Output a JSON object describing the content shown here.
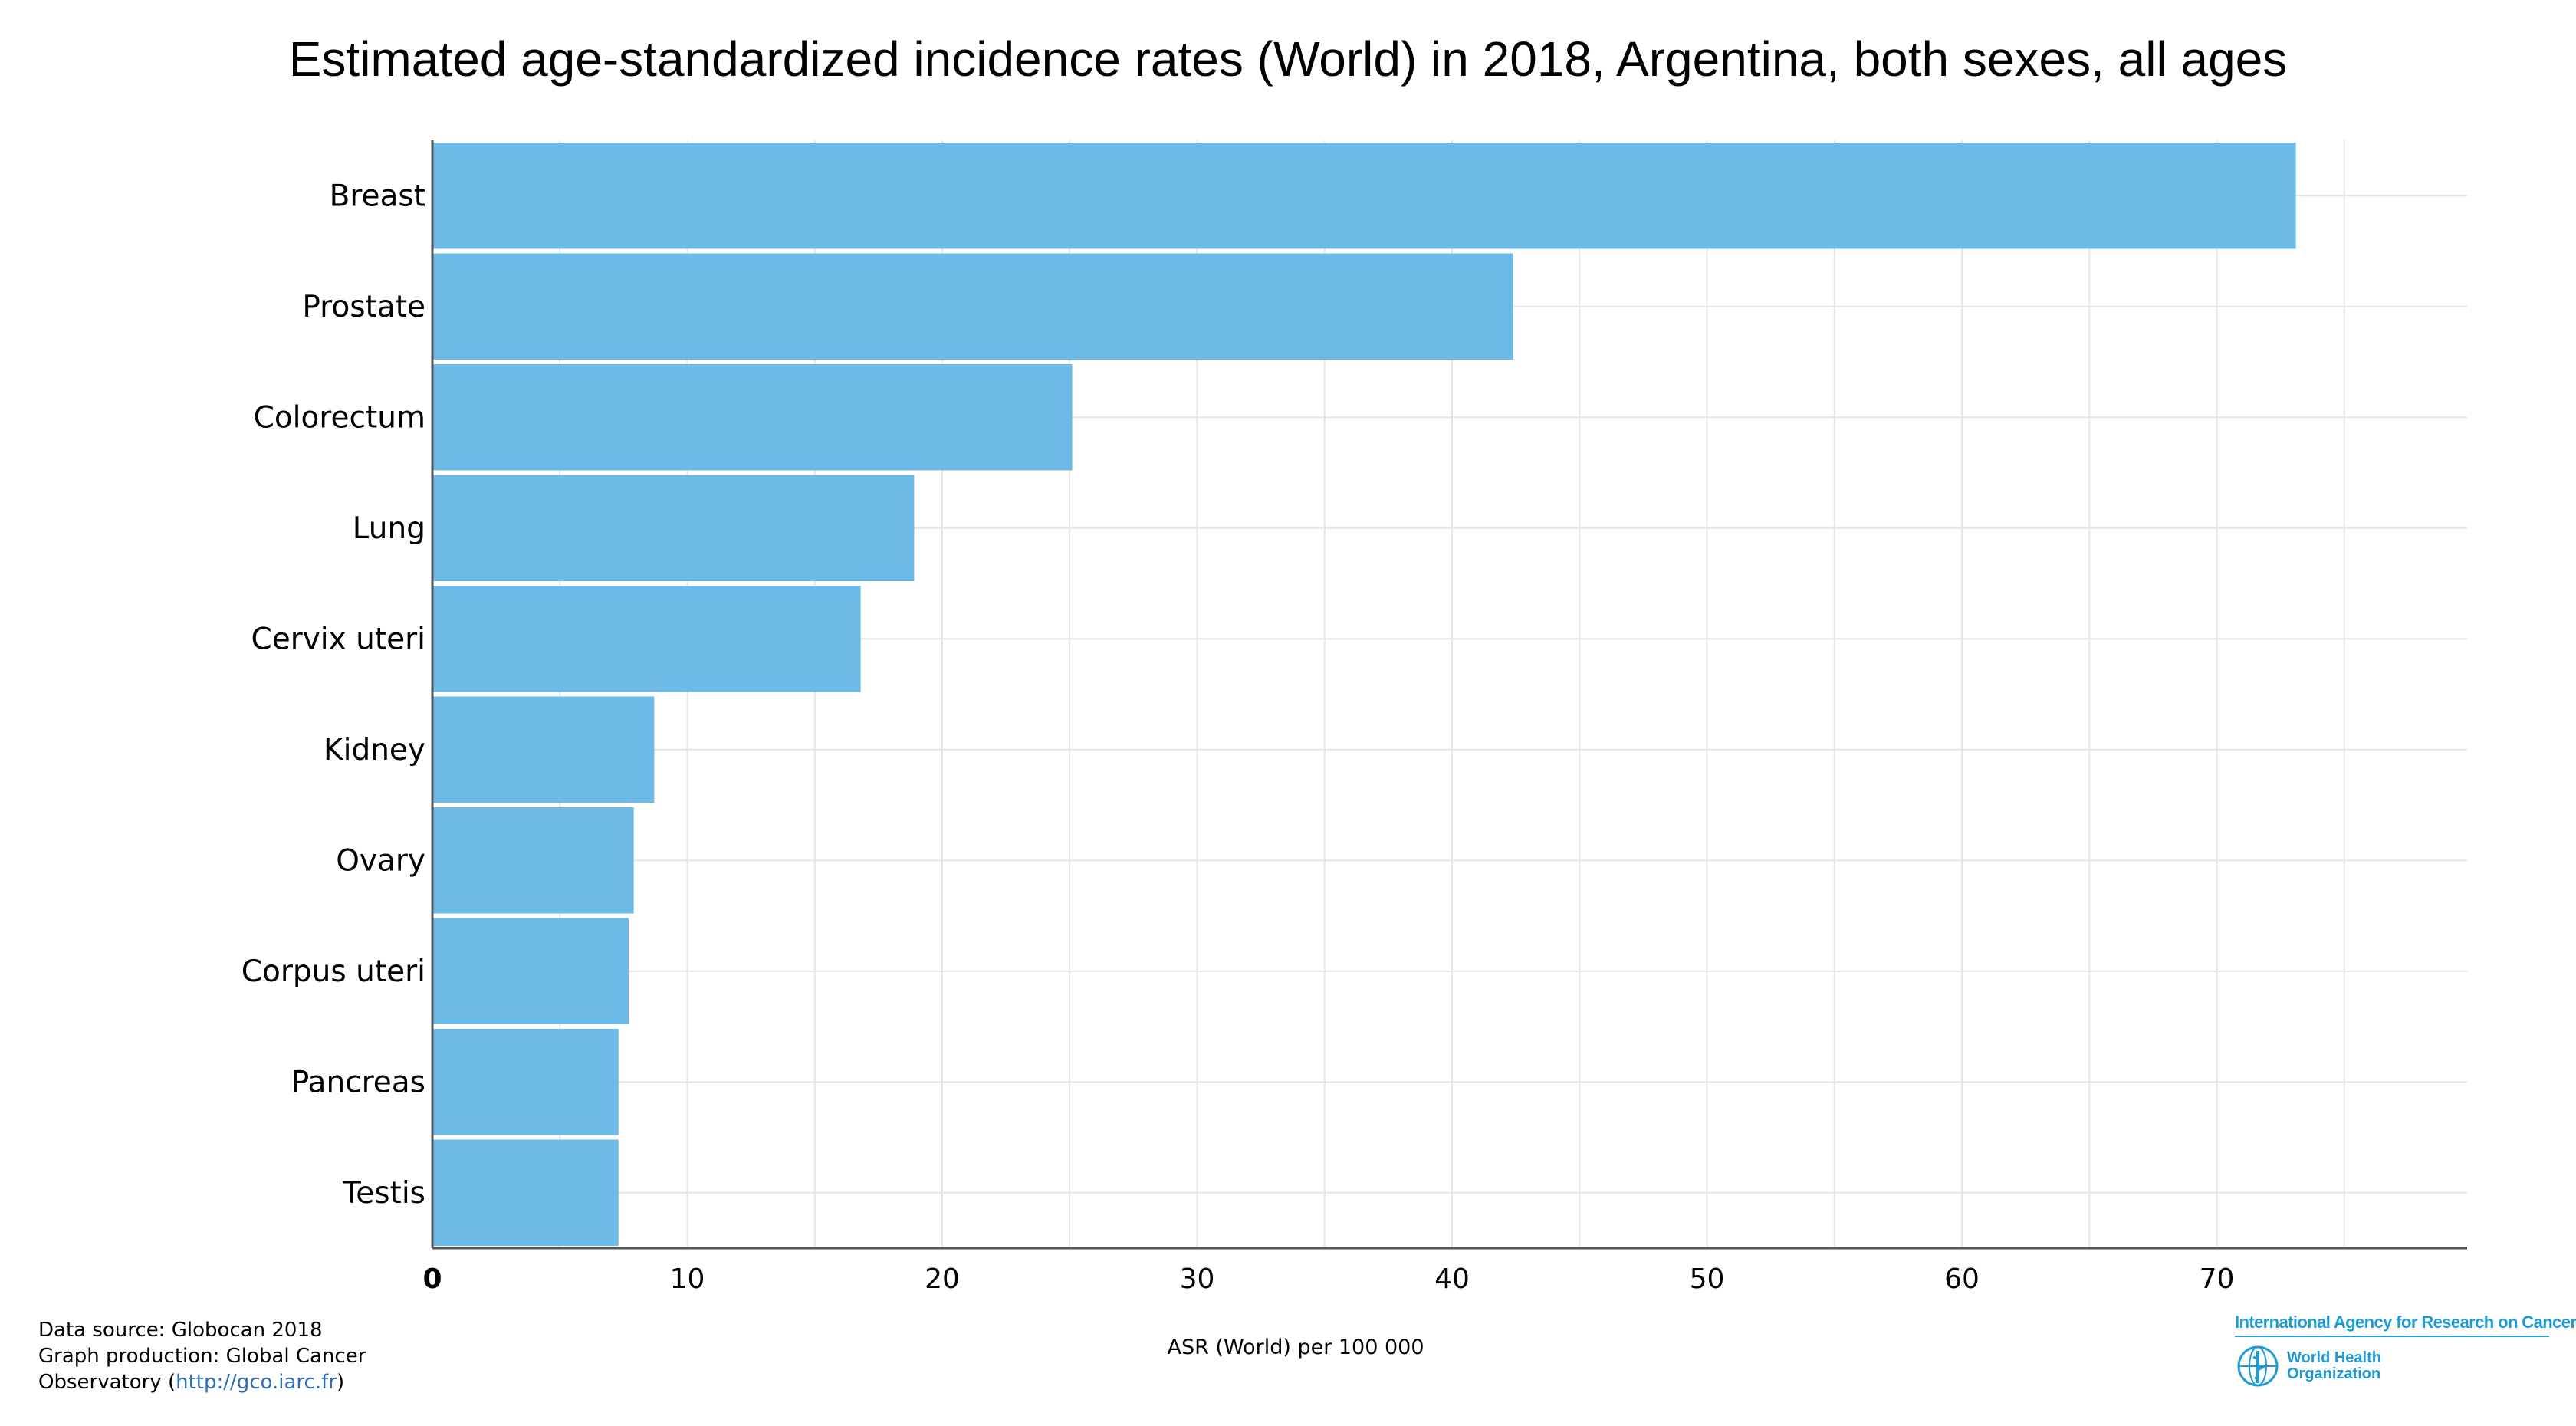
{
  "chart_data": {
    "type": "bar",
    "orientation": "horizontal",
    "title": "Estimated age-standardized incidence rates (World) in 2018, Argentina, both sexes, all ages",
    "xlabel": "ASR (World) per 100 000",
    "ylabel": "",
    "categories": [
      "Breast",
      "Prostate",
      "Colorectum",
      "Lung",
      "Cervix uteri",
      "Kidney",
      "Ovary",
      "Corpus uteri",
      "Pancreas",
      "Testis"
    ],
    "values": [
      73.1,
      42.4,
      25.1,
      18.9,
      16.8,
      8.7,
      7.9,
      7.7,
      7.3,
      7.3
    ],
    "xlim": [
      0,
      80
    ],
    "xticks": [
      "0",
      "10",
      "20",
      "30",
      "40",
      "50",
      "60",
      "70"
    ],
    "grid": true,
    "bar_color": "#6cbae6"
  },
  "footer": {
    "line1": "Data source: Globocan 2018",
    "line2": "Graph production: Global Cancer",
    "line3_prefix": "Observatory (",
    "line3_link": "http://gco.iarc.fr",
    "line3_suffix": ")"
  },
  "logos": {
    "iarc": "International Agency for Research on Cancer",
    "who_line1": "World Health",
    "who_line2": "Organization"
  },
  "colors": {
    "accent": "#1e9bd6",
    "link": "#2e6fb5",
    "grid": "#e6e6e6"
  }
}
